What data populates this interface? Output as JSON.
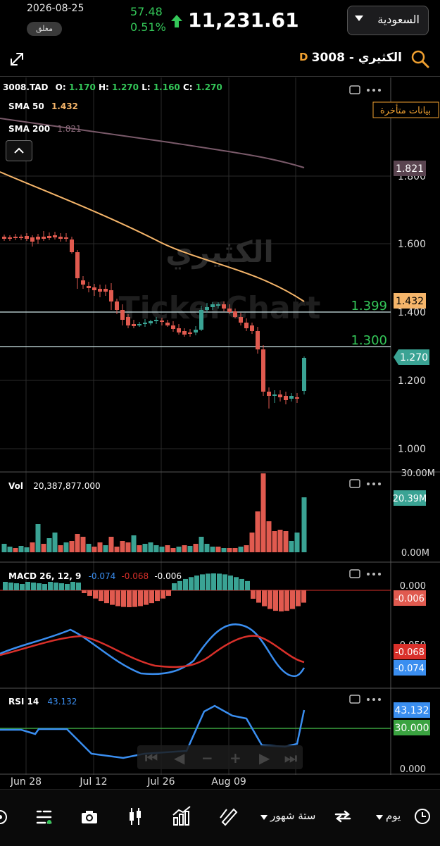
{
  "header": {
    "date": "2026-08-25",
    "status": "مغلق",
    "change_abs": "57.48",
    "change_pct": "0.51%",
    "index_value": "11,231.61",
    "market": "السعودية"
  },
  "symbol_bar": {
    "symbol": "3008  -  الكثيري",
    "period_letter": "D"
  },
  "ohlc": {
    "ticker": "3008.TAD",
    "o_label": "O:",
    "o": "1.170",
    "h_label": "H:",
    "h": "1.270",
    "l_label": "L:",
    "l": "1.160",
    "c_label": "C:",
    "c": "1.270"
  },
  "indicators": {
    "sma50_label": "SMA  50",
    "sma50_value": "1.432",
    "sma200_label": "SMA  200",
    "sma200_value": "1.821"
  },
  "delayed_badge": "بيانات متأخرة",
  "watermark": {
    "line1": "الكثيري",
    "line2": "TickerChart"
  },
  "price_axis": {
    "ticks": [
      "1.800",
      "1.600",
      "1.400",
      "1.200",
      "1.000"
    ],
    "tag_sma200": "1.821",
    "tag_sma50": "1.432",
    "tag_last": "1.270"
  },
  "levels": {
    "upper": "1.399",
    "lower": "1.300"
  },
  "volume": {
    "label": "Vol",
    "value": "20,387,877.000",
    "axis_top": "30.00M",
    "axis_bottom": "0.00M",
    "tag": "20.39M"
  },
  "macd": {
    "label": "MACD  26, 12, 9",
    "v1": "-0.074",
    "v2": "-0.068",
    "v3": "-0.006",
    "axis_top": "0.000",
    "axis_mid": "-0.050",
    "tag_hist": "-0.006",
    "tag_signal": "-0.068",
    "tag_macd": "-0.074"
  },
  "rsi": {
    "label": "RSI  14",
    "value": "43.132",
    "tag_rsi": "43.132",
    "tag_level": "30.000",
    "axis_bottom": "0.000"
  },
  "time_axis": [
    "Jun 28",
    "Jul 12",
    "Jul 26",
    "Aug 09"
  ],
  "bottom_bar": {
    "range_label": "ستة شهور",
    "interval_label": "يوم"
  },
  "colors": {
    "up": "#3aa394",
    "down": "#e05a4f",
    "sma50": "#f5b56a",
    "sma200": "#7a5a6a",
    "macd_line": "#3a8ef0",
    "signal_line": "#d9302a",
    "rsi_line": "#3a8ef0",
    "level": "#cfe8ea",
    "green_text": "#34c759"
  }
}
